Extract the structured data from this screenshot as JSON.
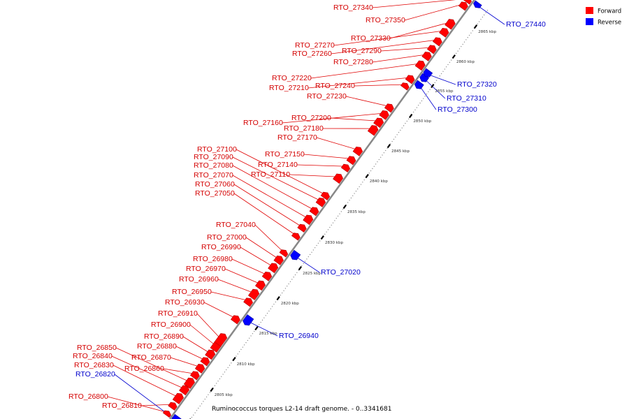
{
  "caption": "Ruminococcus torques L2-14 draft genome. - 0..3341681",
  "legend": [
    {
      "label": "Forward",
      "color": "#ff0000"
    },
    {
      "label": "Reverse",
      "color": "#0000ff"
    }
  ],
  "colors": {
    "forward": "#ff0000",
    "reverse": "#0000ff",
    "backbone": "#888888"
  },
  "ruler_ticks": [
    "2800 kbp",
    "2805 kbp",
    "2810 kbp",
    "2815 kbp",
    "2820 kbp",
    "2825 kbp",
    "2830 kbp",
    "2835 kbp",
    "2840 kbp",
    "2845 kbp",
    "2850 kbp",
    "2855 kbp",
    "2860 kbp",
    "2865 kbp"
  ],
  "forward_genes": [
    "RTO_26800",
    "RTO_26810",
    "RTO_26830",
    "RTO_26840",
    "RTO_26850",
    "RTO_26860",
    "RTO_26870",
    "RTO_26880",
    "RTO_26890",
    "RTO_26900",
    "RTO_26910",
    "RTO_26930",
    "RTO_26950",
    "RTO_26960",
    "RTO_26970",
    "RTO_26980",
    "RTO_26990",
    "RTO_27000",
    "RTO_27040",
    "RTO_27050",
    "RTO_27060",
    "RTO_27070",
    "RTO_27080",
    "RTO_27090",
    "RTO_27100",
    "RTO_27110",
    "RTO_27140",
    "RTO_27150",
    "RTO_27170",
    "RTO_27180",
    "RTO_27200",
    "RTO_27160",
    "RTO_27230",
    "RTO_27240",
    "RTO_27210",
    "RTO_27220",
    "RTO_27280",
    "RTO_27290",
    "RTO_27260",
    "RTO_27270",
    "RTO_27330",
    "RTO_27350",
    "RTO_27340"
  ],
  "reverse_genes": [
    "RTO_26820",
    "RTO_26940",
    "RTO_27020",
    "RTO_27300",
    "RTO_27310",
    "RTO_27320",
    "RTO_27440"
  ]
}
